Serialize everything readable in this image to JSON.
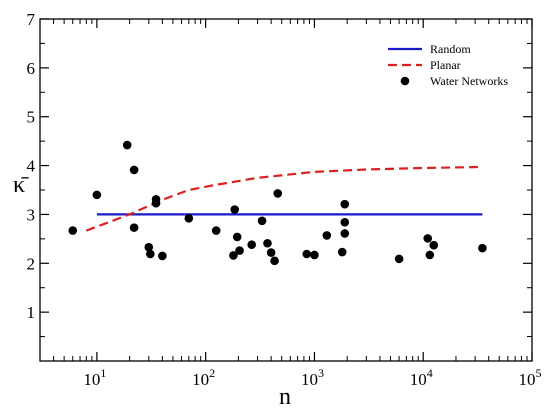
{
  "chart_data": {
    "type": "scatter",
    "xlabel": "n",
    "ylabel": "κ̄",
    "xscale": "log",
    "xlim": [
      3,
      100000
    ],
    "ylim": [
      0,
      7
    ],
    "x_ticks": [
      {
        "value": 10,
        "base": "10",
        "exp": "1"
      },
      {
        "value": 100,
        "base": "10",
        "exp": "2"
      },
      {
        "value": 1000,
        "base": "10",
        "exp": "3"
      },
      {
        "value": 10000,
        "base": "10",
        "exp": "4"
      },
      {
        "value": 100000,
        "base": "10",
        "exp": "5"
      }
    ],
    "y_ticks": [
      1,
      2,
      3,
      4,
      5,
      6,
      7
    ],
    "legend_position": "top-right",
    "grid": false,
    "series": [
      {
        "name": "Random",
        "kind": "line",
        "style": "solid",
        "color": "#1a1acc",
        "points": [
          [
            10,
            3.0
          ],
          [
            35000,
            3.0
          ]
        ]
      },
      {
        "name": "Planar",
        "kind": "line",
        "style": "dashed",
        "color": "#dd1f1f",
        "points": [
          [
            8,
            2.67
          ],
          [
            20,
            3.0
          ],
          [
            40,
            3.3
          ],
          [
            70,
            3.5
          ],
          [
            120,
            3.6
          ],
          [
            300,
            3.75
          ],
          [
            1000,
            3.87
          ],
          [
            3000,
            3.92
          ],
          [
            10000,
            3.95
          ],
          [
            35000,
            3.97
          ]
        ]
      },
      {
        "name": "Water Networks",
        "kind": "scatter",
        "color": "#000000",
        "points": [
          [
            6,
            2.67
          ],
          [
            10,
            3.4
          ],
          [
            19,
            4.42
          ],
          [
            22,
            3.91
          ],
          [
            22,
            2.73
          ],
          [
            30,
            2.33
          ],
          [
            31,
            2.19
          ],
          [
            35,
            3.31
          ],
          [
            35,
            3.23
          ],
          [
            40,
            2.15
          ],
          [
            70,
            2.92
          ],
          [
            125,
            2.67
          ],
          [
            180,
            2.16
          ],
          [
            185,
            3.1
          ],
          [
            195,
            2.54
          ],
          [
            205,
            2.26
          ],
          [
            265,
            2.38
          ],
          [
            330,
            2.87
          ],
          [
            370,
            2.41
          ],
          [
            400,
            2.22
          ],
          [
            430,
            2.05
          ],
          [
            460,
            3.43
          ],
          [
            850,
            2.19
          ],
          [
            1000,
            2.17
          ],
          [
            1300,
            2.57
          ],
          [
            1800,
            2.23
          ],
          [
            1900,
            3.21
          ],
          [
            1900,
            2.84
          ],
          [
            1900,
            2.61
          ],
          [
            6000,
            2.09
          ],
          [
            11000,
            2.51
          ],
          [
            11500,
            2.17
          ],
          [
            12500,
            2.37
          ],
          [
            35000,
            2.31
          ]
        ]
      }
    ]
  }
}
